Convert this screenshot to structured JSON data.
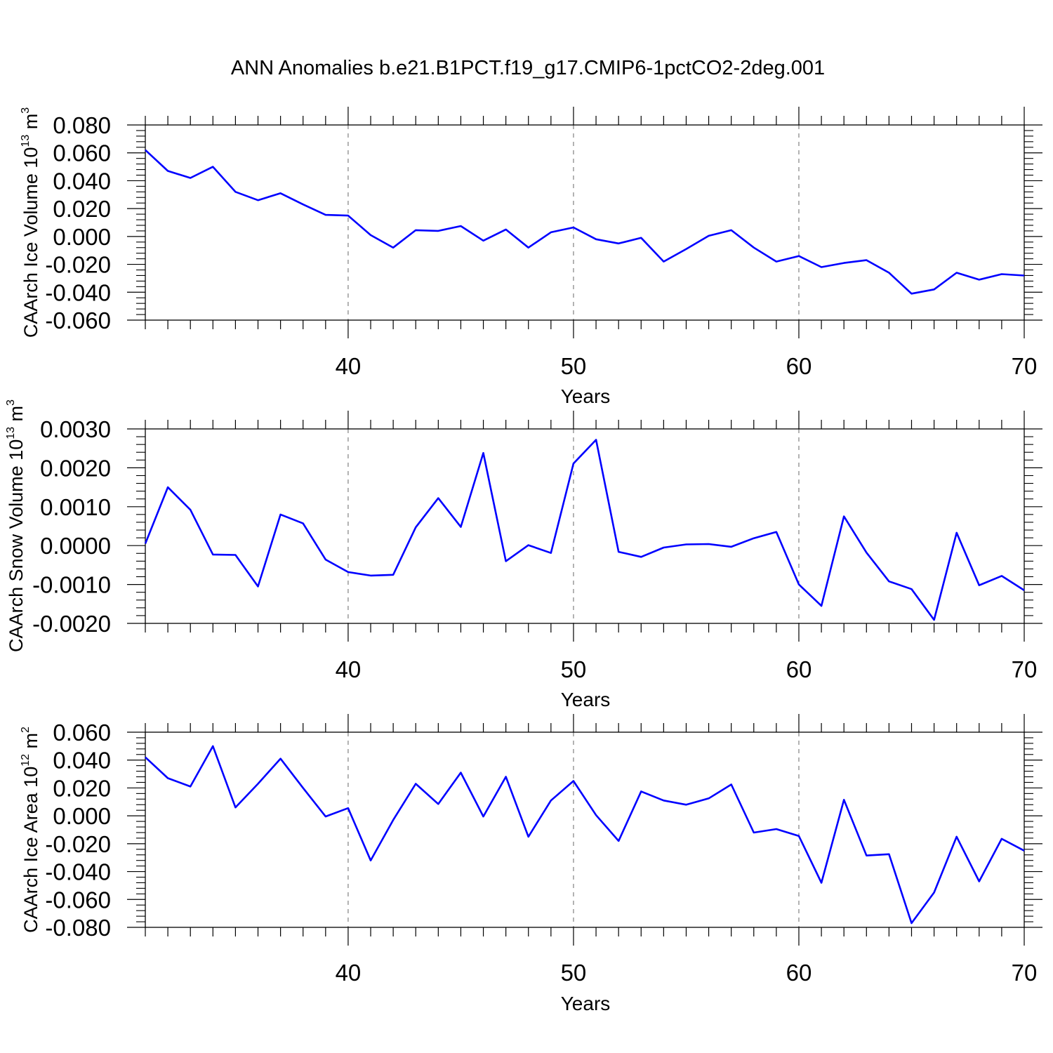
{
  "title": "ANN Anomalies b.e21.B1PCT.f19_g17.CMIP6-1pctCO2-2deg.001",
  "colors": {
    "line": "#0000ff",
    "axis": "#000000",
    "grid": "#808080"
  },
  "chart_data": [
    {
      "type": "line",
      "ylabel": {
        "text": "CAArch Ice Volume 10",
        "sup": "13",
        "unit": " m",
        "unit_sup": "3"
      },
      "xlabel": "Years",
      "xlim": [
        31,
        70
      ],
      "xticks": [
        40,
        50,
        60,
        70
      ],
      "ylim": [
        -0.06,
        0.08
      ],
      "yticks": [
        -0.06,
        -0.04,
        -0.02,
        0.0,
        0.02,
        0.04,
        0.06,
        0.08
      ],
      "ytick_labels": [
        "-0.060",
        "-0.040",
        "-0.020",
        "0.000",
        "0.020",
        "0.040",
        "0.060",
        "0.080"
      ],
      "grid_x": [
        40,
        50,
        60
      ],
      "x": [
        31,
        32,
        33,
        34,
        35,
        36,
        37,
        38,
        39,
        40,
        41,
        42,
        43,
        44,
        45,
        46,
        47,
        48,
        49,
        50,
        51,
        52,
        53,
        54,
        55,
        56,
        57,
        58,
        59,
        60,
        61,
        62,
        63,
        64,
        65,
        66,
        67,
        68,
        69,
        70
      ],
      "values": [
        0.062,
        0.047,
        0.042,
        0.05,
        0.032,
        0.026,
        0.031,
        0.023,
        0.0155,
        0.015,
        0.001,
        -0.008,
        0.0045,
        0.004,
        0.0075,
        -0.003,
        0.005,
        -0.008,
        0.003,
        0.0065,
        -0.002,
        -0.005,
        -0.001,
        -0.018,
        -0.009,
        0.0005,
        0.0045,
        -0.008,
        -0.018,
        -0.014,
        -0.022,
        -0.019,
        -0.017,
        -0.026,
        -0.041,
        -0.038,
        -0.026,
        -0.031,
        -0.027,
        -0.028
      ]
    },
    {
      "type": "line",
      "ylabel": {
        "text": "CAArch Snow Volume 10",
        "sup": "13",
        "unit": " m",
        "unit_sup": "3"
      },
      "xlabel": "Years",
      "xlim": [
        31,
        70
      ],
      "xticks": [
        40,
        50,
        60,
        70
      ],
      "ylim": [
        -0.002,
        0.003
      ],
      "yticks": [
        -0.002,
        -0.001,
        0.0,
        0.001,
        0.002,
        0.003
      ],
      "ytick_labels": [
        "-0.0020",
        "-0.0010",
        "0.0000",
        "0.0010",
        "0.0020",
        "0.0030"
      ],
      "grid_x": [
        40,
        50,
        60
      ],
      "x": [
        31,
        32,
        33,
        34,
        35,
        36,
        37,
        38,
        39,
        40,
        41,
        42,
        43,
        44,
        45,
        46,
        47,
        48,
        49,
        50,
        51,
        52,
        53,
        54,
        55,
        56,
        57,
        58,
        59,
        60,
        61,
        62,
        63,
        64,
        65,
        66,
        67,
        68,
        69,
        70
      ],
      "values": [
        5e-05,
        0.0015,
        0.00092,
        -0.00023,
        -0.00024,
        -0.00105,
        0.0008,
        0.00057,
        -0.00036,
        -0.00068,
        -0.00077,
        -0.00075,
        0.00047,
        0.00122,
        0.00048,
        0.00238,
        -0.0004,
        1e-05,
        -0.00019,
        0.00211,
        0.00272,
        -0.00016,
        -0.00029,
        -5e-05,
        3e-05,
        4e-05,
        -3e-05,
        0.00019,
        0.00035,
        -0.001,
        -0.00155,
        0.00075,
        -0.00018,
        -0.00092,
        -0.00112,
        -0.00191,
        0.00033,
        -0.00102,
        -0.00078,
        -0.00115
      ]
    },
    {
      "type": "line",
      "ylabel": {
        "text": "CAArch Ice Area 10",
        "sup": "12",
        "unit": " m",
        "unit_sup": "2"
      },
      "xlabel": "Years",
      "xlim": [
        31,
        70
      ],
      "xticks": [
        40,
        50,
        60,
        70
      ],
      "ylim": [
        -0.08,
        0.06
      ],
      "yticks": [
        -0.08,
        -0.06,
        -0.04,
        -0.02,
        0.0,
        0.02,
        0.04,
        0.06
      ],
      "ytick_labels": [
        "-0.080",
        "-0.060",
        "-0.040",
        "-0.020",
        "0.000",
        "0.020",
        "0.040",
        "0.060"
      ],
      "grid_x": [
        40,
        50,
        60
      ],
      "x": [
        31,
        32,
        33,
        34,
        35,
        36,
        37,
        38,
        39,
        40,
        41,
        42,
        43,
        44,
        45,
        46,
        47,
        48,
        49,
        50,
        51,
        52,
        53,
        54,
        55,
        56,
        57,
        58,
        59,
        60,
        61,
        62,
        63,
        64,
        65,
        66,
        67,
        68,
        69,
        70
      ],
      "values": [
        0.042,
        0.027,
        0.021,
        0.05,
        0.006,
        0.023,
        0.041,
        0.02,
        -0.0005,
        0.0055,
        -0.032,
        -0.003,
        0.023,
        0.0085,
        0.031,
        -0.0005,
        0.028,
        -0.015,
        0.011,
        0.025,
        0.0005,
        -0.018,
        0.0175,
        0.011,
        0.008,
        0.0125,
        0.0225,
        -0.012,
        -0.0095,
        -0.0145,
        -0.048,
        0.0115,
        -0.0285,
        -0.0275,
        -0.077,
        -0.055,
        -0.015,
        -0.047,
        -0.0165,
        -0.025
      ]
    }
  ]
}
